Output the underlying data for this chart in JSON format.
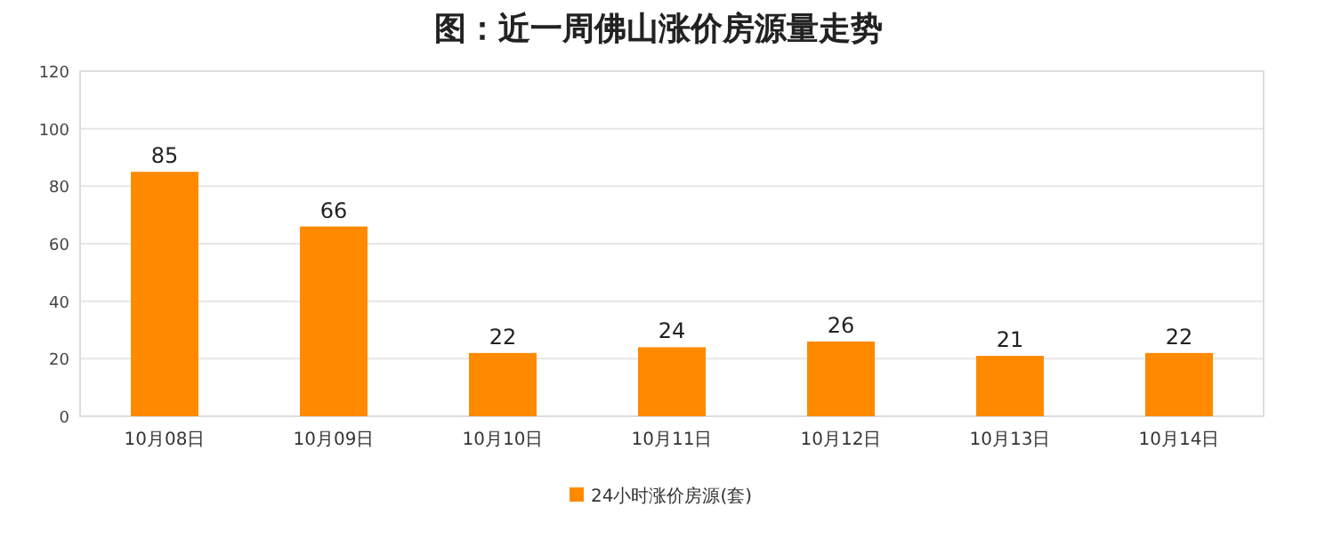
{
  "chart_data": {
    "type": "bar",
    "title": "图：近一周佛山涨价房源量走势",
    "categories": [
      "10月08日",
      "10月09日",
      "10月10日",
      "10月11日",
      "10月12日",
      "10月13日",
      "10月14日"
    ],
    "series": [
      {
        "name": "24小时涨价房源(套)",
        "color": "#ff8a00",
        "values": [
          85,
          66,
          22,
          24,
          26,
          21,
          22
        ]
      }
    ],
    "ylim": [
      0,
      120
    ],
    "yticks": [
      0,
      20,
      40,
      60,
      80,
      100,
      120
    ],
    "grid": "y",
    "legend": "bottom",
    "data_labels": true
  }
}
